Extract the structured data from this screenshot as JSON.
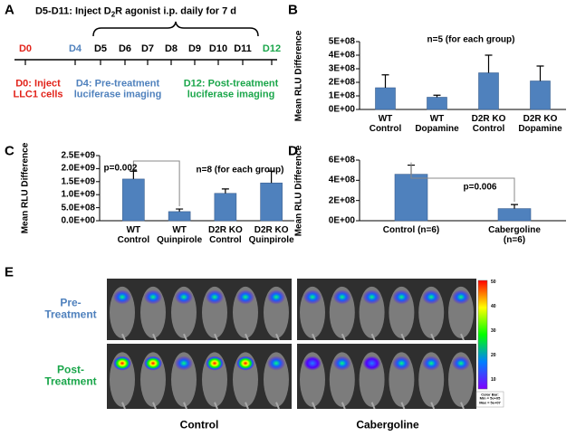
{
  "panel_labels": [
    "A",
    "B",
    "C",
    "D",
    "E"
  ],
  "timeline": {
    "title_parts": [
      "D5-D11: Inject D",
      "2",
      "R agonist i.p. daily for 7 d"
    ],
    "days": [
      {
        "label": "D0",
        "color": "#e2231a"
      },
      {
        "label": "D4",
        "color": "#4f81bd"
      },
      {
        "label": "D5",
        "color": "#000000"
      },
      {
        "label": "D6",
        "color": "#000000"
      },
      {
        "label": "D7",
        "color": "#000000"
      },
      {
        "label": "D8",
        "color": "#000000"
      },
      {
        "label": "D9",
        "color": "#000000"
      },
      {
        "label": "D10",
        "color": "#000000"
      },
      {
        "label": "D11",
        "color": "#000000"
      },
      {
        "label": "D12",
        "color": "#1aa64a"
      }
    ],
    "notes": [
      {
        "text": "D0: Inject\nLLC1 cells",
        "color": "#e2231a"
      },
      {
        "text": "D4: Pre-treatment\nluciferase imaging",
        "color": "#4f81bd"
      },
      {
        "text": "D12: Post-treatment\nluciferase imaging",
        "color": "#1aa64a"
      }
    ]
  },
  "chart_data": [
    {
      "type": "bar",
      "y_label": "Mean RLU Difference",
      "annotations": [
        "n=5 (for each group)"
      ],
      "categories": [
        "WT\nControl",
        "WT\nDopamine",
        "D2R KO\nControl",
        "D2R KO\nDopamine"
      ],
      "values": [
        160000000,
        90000000,
        270000000,
        210000000
      ],
      "errors": [
        95000000,
        15000000,
        130000000,
        110000000
      ],
      "color": "#4f81bd",
      "ylim": [
        0,
        500000000
      ],
      "yticks": [
        {
          "value": 0,
          "label": "0E+00"
        },
        {
          "value": 100000000,
          "label": "1E+08"
        },
        {
          "value": 200000000,
          "label": "2E+08"
        },
        {
          "value": 300000000,
          "label": "3E+08"
        },
        {
          "value": 400000000,
          "label": "4E+08"
        },
        {
          "value": 500000000,
          "label": "5E+08"
        }
      ]
    },
    {
      "type": "bar",
      "y_label": "Mean RLU Difference",
      "annotations": [
        "p=0.002",
        "n=8 (for each group)"
      ],
      "categories": [
        "WT\nControl",
        "WT\nQuinpirole",
        "D2R KO\nControl",
        "D2R KO\nQuinpirole"
      ],
      "values": [
        1600000000,
        350000000,
        1050000000,
        1450000000
      ],
      "errors": [
        300000000,
        100000000,
        170000000,
        450000000
      ],
      "color": "#4f81bd",
      "ylim": [
        0,
        2500000000
      ],
      "yticks": [
        {
          "value": 0,
          "label": "0.0E+00"
        },
        {
          "value": 500000000,
          "label": "5.0E+08"
        },
        {
          "value": 1000000000,
          "label": "1.0E+09"
        },
        {
          "value": 1500000000,
          "label": "1.5E+09"
        },
        {
          "value": 2000000000,
          "label": "2.0E+09"
        },
        {
          "value": 2500000000,
          "label": "2.5E+09"
        }
      ]
    },
    {
      "type": "bar",
      "y_label": "Mean RLU Difference",
      "annotations": [
        "p=0.006"
      ],
      "categories": [
        "Control (n=6)",
        "Cabergoline\n(n=6)"
      ],
      "values": [
        460000000,
        120000000
      ],
      "errors": [
        90000000,
        40000000
      ],
      "color": "#4f81bd",
      "ylim": [
        0,
        600000000
      ],
      "yticks": [
        {
          "value": 0,
          "label": "0E+00"
        },
        {
          "value": 200000000,
          "label": "2E+08"
        },
        {
          "value": 400000000,
          "label": "4E+08"
        },
        {
          "value": 600000000,
          "label": "6E+08"
        }
      ]
    }
  ],
  "imaging": {
    "row_labels": [
      "Pre-\nTreatment",
      "Post-\nTreatment"
    ],
    "column_labels": [
      "Control",
      "Cabergoline"
    ],
    "row_label_color": "#4f81bd",
    "post_label_color": "#1aa64a",
    "colorbar_ticks": [
      "50",
      "40",
      "30",
      "20",
      "10"
    ],
    "colorbar_note": "Color Bar:\nMin = 5e+05\nMax = 5e+07"
  }
}
